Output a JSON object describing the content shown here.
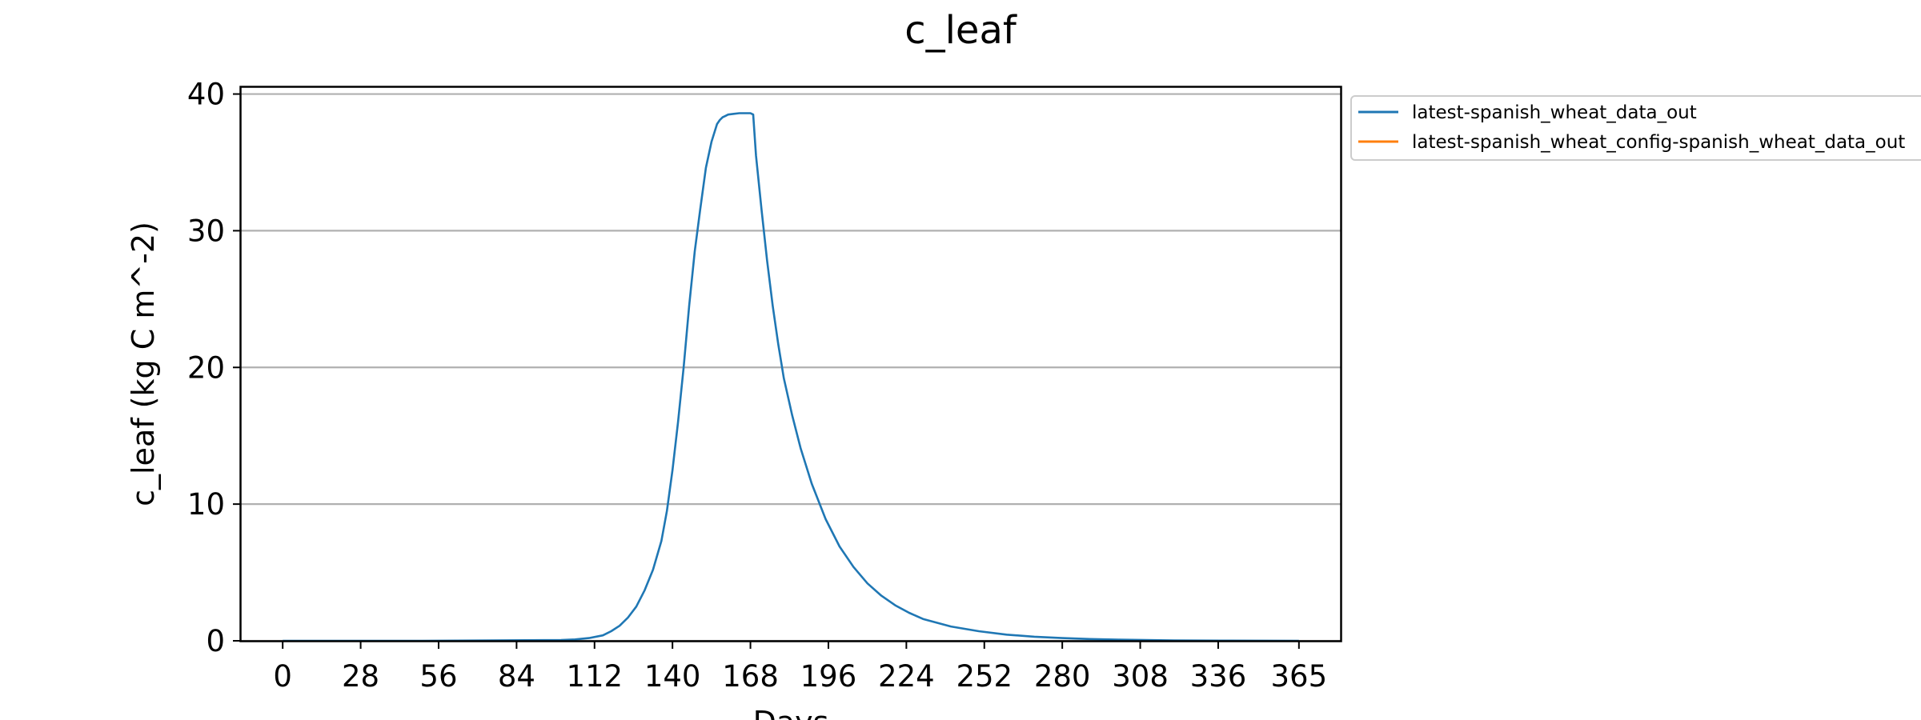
{
  "chart_data": {
    "type": "line",
    "title": "c_leaf",
    "xlabel": "Days",
    "ylabel": "c_leaf (kg C m^-2)",
    "xlim": [
      -15,
      380
    ],
    "ylim": [
      0,
      40.5
    ],
    "xticks": [
      0,
      28,
      56,
      84,
      112,
      140,
      168,
      196,
      224,
      252,
      280,
      308,
      336,
      365
    ],
    "yticks": [
      0,
      10,
      20,
      30,
      40
    ],
    "grid": "horizontal",
    "legend_position": "outside-top-right",
    "colors": {
      "series_0": "#1f77b4",
      "series_1": "#ff7f0e",
      "grid": "#b0b0b0"
    },
    "series": [
      {
        "name": "latest-spanish_wheat_data_out",
        "x": [
          0,
          50,
          100,
          105,
          110,
          115,
          118,
          121,
          124,
          127,
          130,
          133,
          136,
          138,
          140,
          142,
          144,
          146,
          148,
          150,
          152,
          154,
          156,
          157,
          158,
          159,
          160,
          162,
          164,
          166,
          168,
          169,
          170,
          172,
          174,
          176,
          178,
          180,
          183,
          186,
          190,
          195,
          200,
          205,
          210,
          215,
          220,
          225,
          230,
          240,
          250,
          260,
          270,
          280,
          290,
          300,
          310,
          320,
          340,
          365
        ],
        "y": [
          0,
          0,
          0.05,
          0.1,
          0.2,
          0.4,
          0.7,
          1.1,
          1.7,
          2.5,
          3.7,
          5.2,
          7.3,
          9.5,
          12.5,
          16,
          20,
          24.5,
          28.5,
          31.6,
          34.6,
          36.5,
          37.8,
          38.1,
          38.3,
          38.4,
          38.5,
          38.55,
          38.6,
          38.6,
          38.6,
          38.5,
          35.5,
          31.5,
          27.8,
          24.5,
          21.7,
          19.2,
          16.5,
          14.1,
          11.5,
          8.9,
          6.9,
          5.4,
          4.2,
          3.3,
          2.6,
          2.05,
          1.6,
          1.05,
          0.7,
          0.45,
          0.3,
          0.2,
          0.13,
          0.08,
          0.05,
          0.03,
          0.01,
          0
        ]
      },
      {
        "name": "latest-spanish_wheat_config-spanish_wheat_data_out",
        "x": [],
        "y": []
      }
    ]
  }
}
